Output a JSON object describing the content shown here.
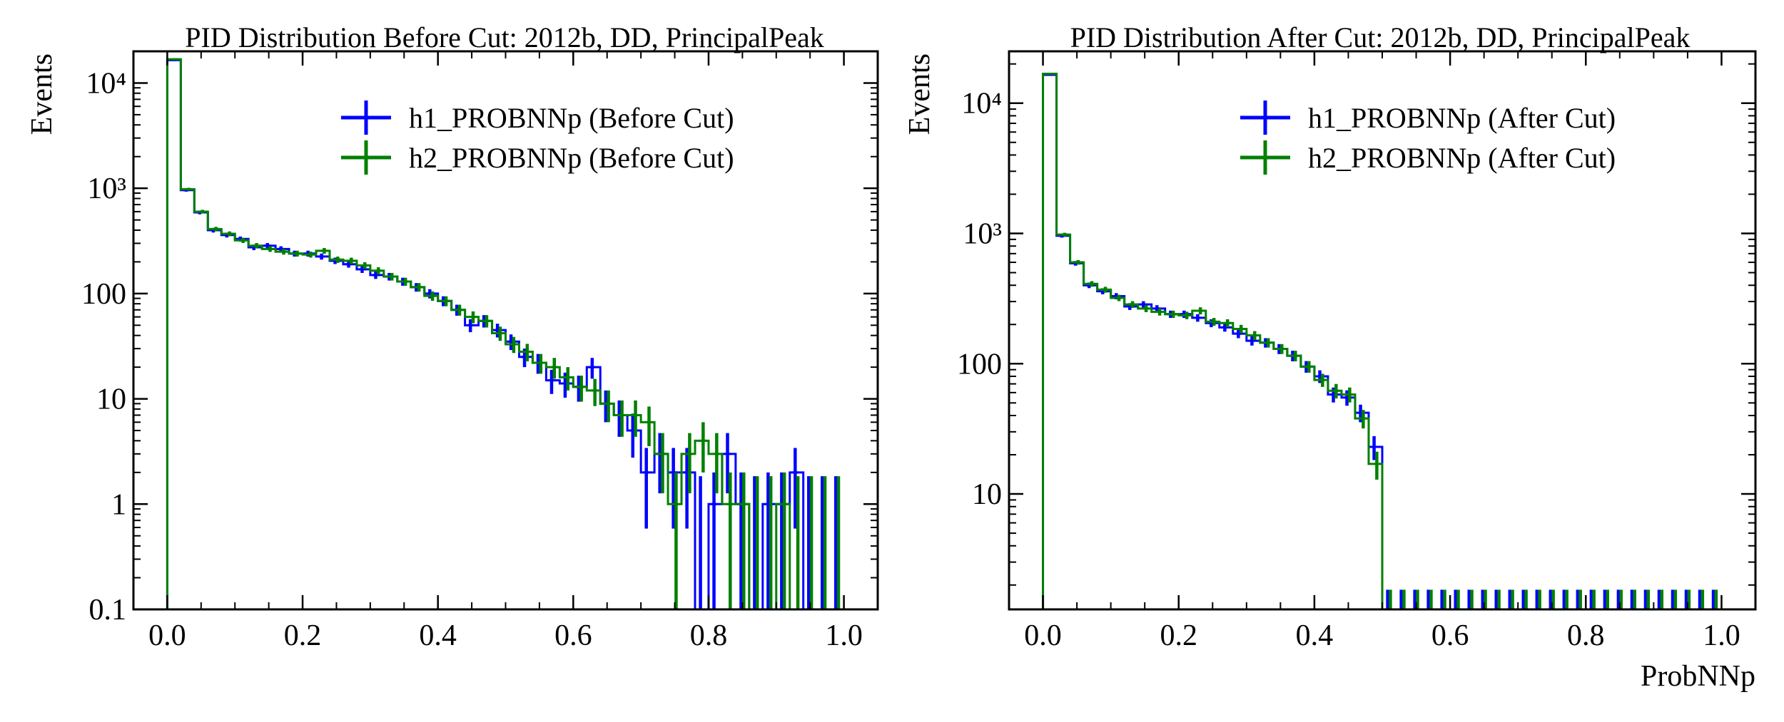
{
  "chart_data": [
    {
      "type": "histogram",
      "title": "PID Distribution Before Cut: 2012b, DD, PrincipalPeak",
      "xlabel": "",
      "ylabel": "Events",
      "yscale": "log",
      "xlim": [
        -0.05,
        1.05
      ],
      "ylim": [
        0.1,
        20000
      ],
      "grid": false,
      "legend_position": "top-right",
      "bin_edges": [
        0.0,
        0.02,
        0.04,
        0.06,
        0.08,
        0.1,
        0.12,
        0.14,
        0.16,
        0.18,
        0.2,
        0.22,
        0.24,
        0.26,
        0.28,
        0.3,
        0.32,
        0.34,
        0.36,
        0.38,
        0.4,
        0.42,
        0.44,
        0.46,
        0.48,
        0.5,
        0.52,
        0.54,
        0.56,
        0.58,
        0.6,
        0.62,
        0.64,
        0.66,
        0.68,
        0.7,
        0.72,
        0.74,
        0.76,
        0.78,
        0.8,
        0.82,
        0.84,
        0.86,
        0.88,
        0.9,
        0.92,
        0.94,
        0.96,
        0.98,
        1.0
      ],
      "x_ticks": [
        "0.0",
        "0.2",
        "0.4",
        "0.6",
        "0.8",
        "1.0"
      ],
      "y_ticks": [
        "0.1",
        "1",
        "10",
        "100",
        "10³",
        "10⁴"
      ],
      "series": [
        {
          "name": "h1_PROBNNp (Before Cut)",
          "color": "#0000ff",
          "values": [
            16500,
            960,
            590,
            400,
            360,
            330,
            275,
            285,
            265,
            240,
            240,
            225,
            205,
            190,
            170,
            150,
            145,
            130,
            115,
            100,
            85,
            70,
            50,
            55,
            45,
            35,
            25,
            22,
            15,
            14,
            13,
            20,
            9,
            7,
            5,
            2,
            3,
            2,
            2,
            0,
            1,
            3,
            1,
            0,
            1,
            1,
            2,
            0,
            0,
            0
          ]
        },
        {
          "name": "h2_PROBNNp (Before Cut)",
          "color": "#008000",
          "values": [
            16800,
            980,
            600,
            410,
            370,
            320,
            285,
            265,
            250,
            240,
            235,
            255,
            210,
            205,
            185,
            165,
            145,
            130,
            115,
            95,
            85,
            70,
            60,
            55,
            42,
            33,
            28,
            22,
            20,
            16,
            13,
            12,
            9,
            7,
            7,
            6,
            3,
            1,
            3,
            4,
            3,
            1,
            1,
            0,
            0,
            1,
            0,
            0,
            0,
            0
          ]
        }
      ],
      "legend": [
        "h1_PROBNNp (Before Cut)",
        "h2_PROBNNp (Before Cut)"
      ]
    },
    {
      "type": "histogram",
      "title": "PID Distribution After Cut: 2012b, DD, PrincipalPeak",
      "xlabel": "ProbNNp",
      "ylabel": "Events",
      "yscale": "log",
      "xlim": [
        -0.05,
        1.05
      ],
      "ylim": [
        1.3,
        25000
      ],
      "grid": false,
      "legend_position": "top-right",
      "bin_edges": [
        0.0,
        0.02,
        0.04,
        0.06,
        0.08,
        0.1,
        0.12,
        0.14,
        0.16,
        0.18,
        0.2,
        0.22,
        0.24,
        0.26,
        0.28,
        0.3,
        0.32,
        0.34,
        0.36,
        0.38,
        0.4,
        0.42,
        0.44,
        0.46,
        0.48,
        0.5,
        0.52,
        0.54,
        0.56,
        0.58,
        0.6,
        0.62,
        0.64,
        0.66,
        0.68,
        0.7,
        0.72,
        0.74,
        0.76,
        0.78,
        0.8,
        0.82,
        0.84,
        0.86,
        0.88,
        0.9,
        0.92,
        0.94,
        0.96,
        0.98,
        1.0
      ],
      "x_ticks": [
        "0.0",
        "0.2",
        "0.4",
        "0.6",
        "0.8",
        "1.0"
      ],
      "y_ticks": [
        "10",
        "100",
        "10³",
        "10⁴"
      ],
      "series": [
        {
          "name": "h1_PROBNNp (After Cut)",
          "color": "#0000ff",
          "values": [
            16500,
            960,
            590,
            400,
            360,
            330,
            275,
            285,
            265,
            240,
            240,
            225,
            205,
            190,
            170,
            150,
            145,
            130,
            115,
            95,
            80,
            58,
            55,
            42,
            23,
            0,
            0,
            0,
            0,
            0,
            0,
            0,
            0,
            0,
            0,
            0,
            0,
            0,
            0,
            0,
            0,
            0,
            0,
            0,
            0,
            0,
            0,
            0,
            0,
            0
          ]
        },
        {
          "name": "h2_PROBNNp (After Cut)",
          "color": "#008000",
          "values": [
            16800,
            980,
            600,
            410,
            370,
            320,
            285,
            265,
            250,
            240,
            235,
            255,
            210,
            205,
            185,
            165,
            145,
            130,
            115,
            95,
            75,
            62,
            58,
            38,
            17,
            0,
            0,
            0,
            0,
            0,
            0,
            0,
            0,
            0,
            0,
            0,
            0,
            0,
            0,
            0,
            0,
            0,
            0,
            0,
            0,
            0,
            0,
            0,
            0,
            0
          ]
        }
      ],
      "legend": [
        "h1_PROBNNp (After Cut)",
        "h2_PROBNNp (After Cut)"
      ]
    }
  ]
}
